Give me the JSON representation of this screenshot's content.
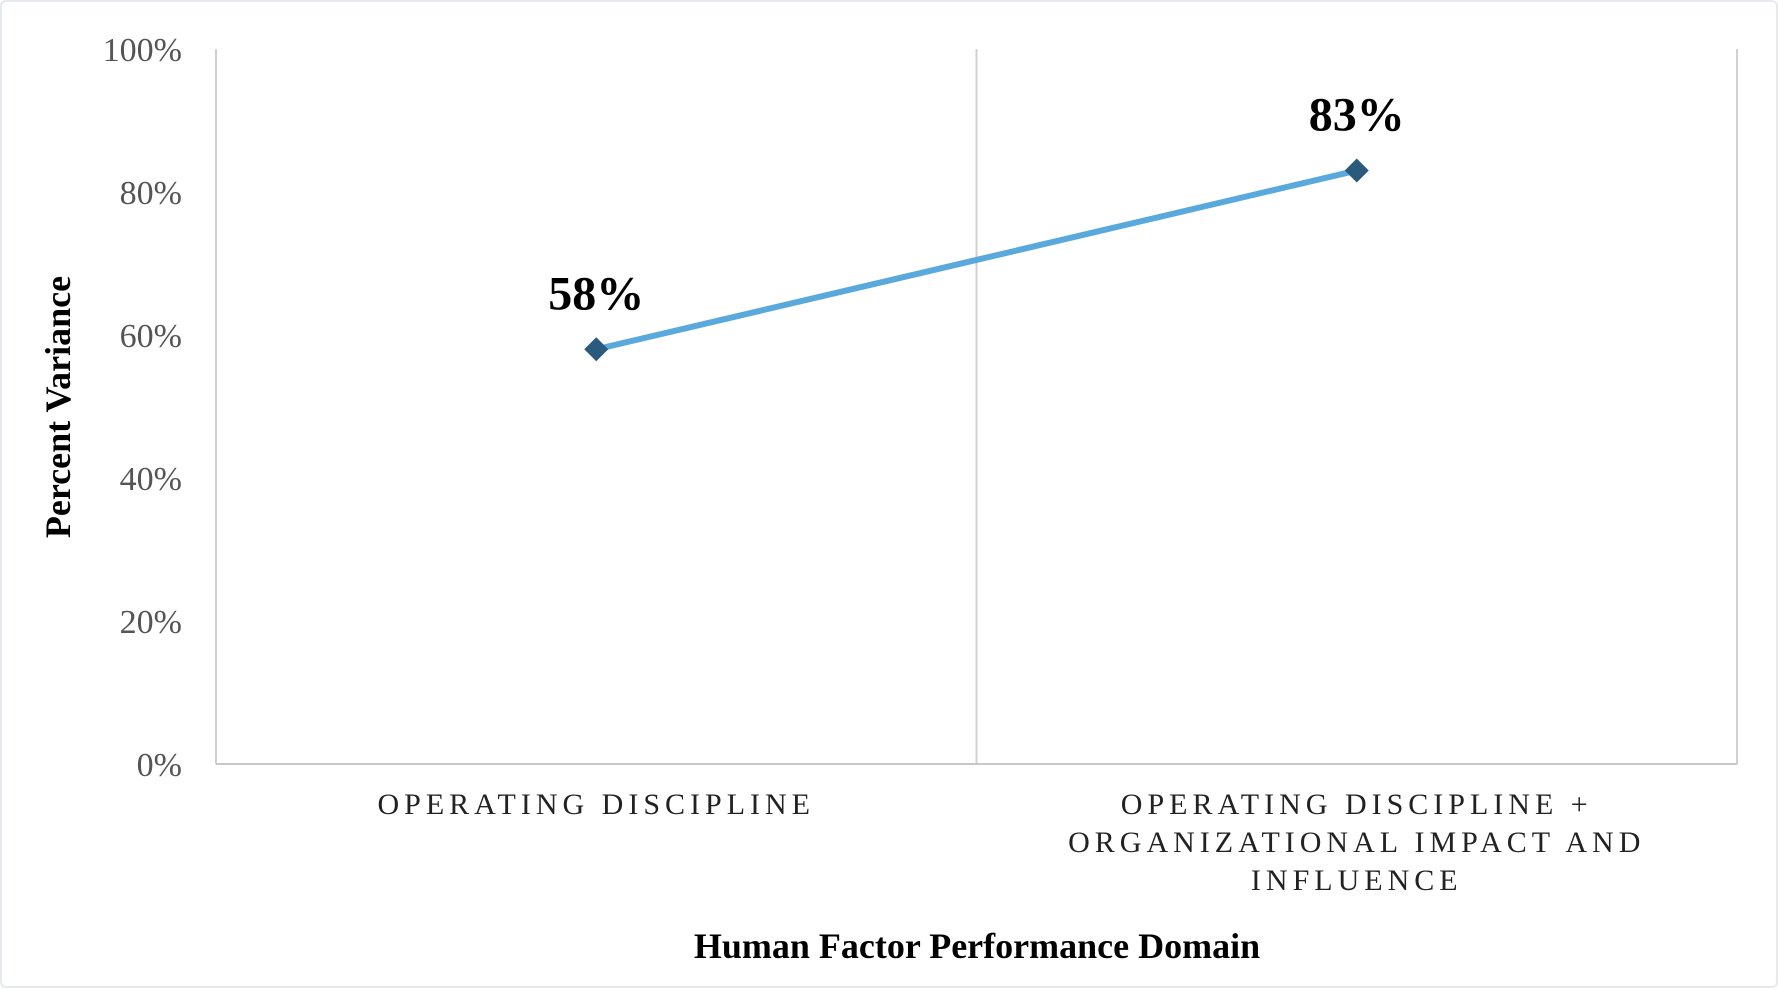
{
  "chart_data": {
    "type": "line",
    "title": "",
    "xlabel": "Human Factor Performance Domain",
    "ylabel": "Percent Variance",
    "ylim": [
      0,
      100
    ],
    "yticks": [
      "0%",
      "20%",
      "40%",
      "60%",
      "80%",
      "100%"
    ],
    "grid": "vertical category separators",
    "categories": [
      [
        "OPERATING DISCIPLINE"
      ],
      [
        "OPERATING DISCIPLINE +",
        "ORGANIZATIONAL IMPACT AND",
        "INFLUENCE"
      ]
    ],
    "series": [
      {
        "values": [
          58,
          83
        ],
        "data_labels": [
          "58%",
          "83%"
        ],
        "line_color": "#5aa9dc",
        "marker": "diamond",
        "marker_color": "#2a5a7e"
      }
    ],
    "colors": {
      "axis": "#c8c8c8",
      "gridline": "#d0d0d0"
    }
  }
}
